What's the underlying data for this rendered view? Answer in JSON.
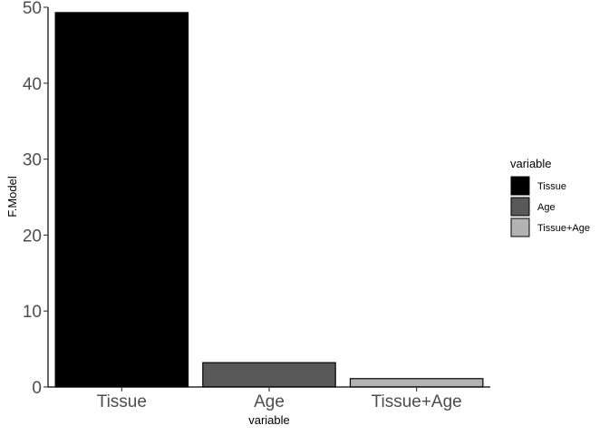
{
  "chart_data": {
    "type": "bar",
    "categories": [
      "Tissue",
      "Age",
      "Tissue+Age"
    ],
    "values": [
      49.3,
      3.2,
      1.1
    ],
    "colors": [
      "#000000",
      "#595959",
      "#b3b3b3"
    ],
    "xlabel": "variable",
    "ylabel": "F.Model",
    "ylim": [
      0,
      50
    ],
    "yticks": [
      0,
      10,
      20,
      30,
      40,
      50
    ],
    "grid": false,
    "legend": {
      "title": "variable",
      "position": "right",
      "entries": [
        "Tissue",
        "Age",
        "Tissue+Age"
      ]
    }
  }
}
